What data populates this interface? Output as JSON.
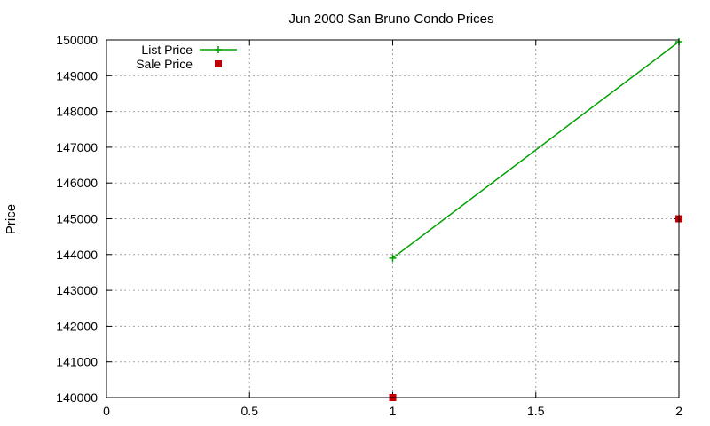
{
  "chart_data": {
    "type": "line",
    "title": "Jun 2000 San Bruno Condo Prices",
    "xlabel": "",
    "ylabel": "Price",
    "xlim": [
      0,
      2
    ],
    "ylim": [
      140000,
      150000
    ],
    "x_ticks": [
      "0",
      "0.5",
      "1",
      "1.5",
      "2"
    ],
    "y_ticks": [
      "140000",
      "141000",
      "142000",
      "143000",
      "144000",
      "145000",
      "146000",
      "147000",
      "148000",
      "149000",
      "150000"
    ],
    "grid": true,
    "legend_position": "top-left",
    "series": [
      {
        "name": "List Price",
        "style": "linespoints",
        "marker": "plus",
        "color": "#00a000",
        "points": [
          [
            1,
            143900
          ],
          [
            2,
            149950
          ]
        ]
      },
      {
        "name": "Sale Price",
        "style": "points",
        "marker": "square",
        "color": "#c00000",
        "points": [
          [
            1,
            140000
          ],
          [
            2,
            145000
          ]
        ]
      }
    ]
  }
}
